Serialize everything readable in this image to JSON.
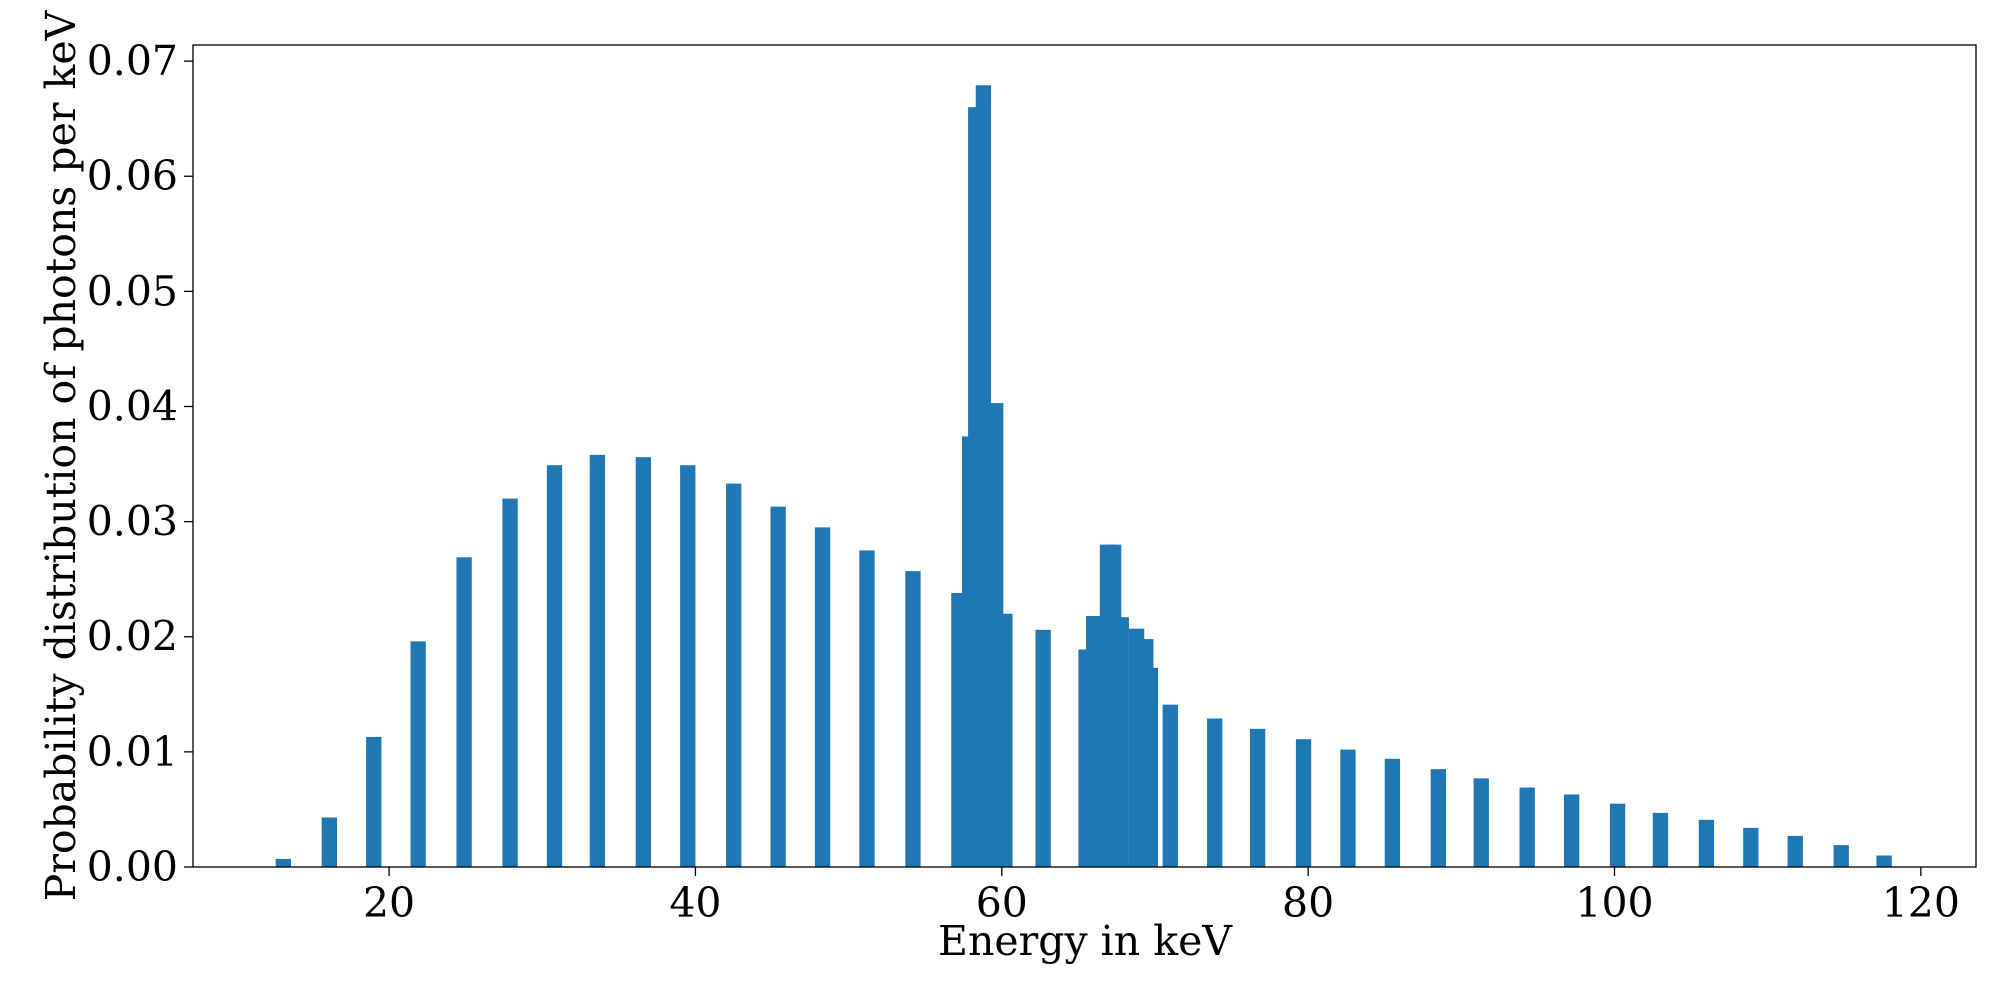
{
  "chart_data": {
    "type": "bar",
    "color": "#1f77b4",
    "bar_width": 1,
    "xlabel": "Energy in keV",
    "ylabel": "Probability distribution of photons per keV",
    "x": [
      13.1,
      16.1,
      19.0,
      21.9,
      24.9,
      27.9,
      30.8,
      33.6,
      36.6,
      39.5,
      42.5,
      45.4,
      48.3,
      51.2,
      54.2,
      57.2,
      57.9,
      58.3,
      58.8,
      59.6,
      60.2,
      62.7,
      65.5,
      66.0,
      66.9,
      67.3,
      67.8,
      68.8,
      69.4,
      69.7,
      71.0,
      73.9,
      76.7,
      79.7,
      82.6,
      85.5,
      88.5,
      91.3,
      94.3,
      97.2,
      100.2,
      103.0,
      106.0,
      108.9,
      111.8,
      114.8,
      117.6
    ],
    "values": [
      0.0007,
      0.0043,
      0.0113,
      0.0196,
      0.0269,
      0.032,
      0.0349,
      0.0358,
      0.0356,
      0.0349,
      0.0333,
      0.0313,
      0.0295,
      0.0275,
      0.0257,
      0.0238,
      0.0374,
      0.066,
      0.0679,
      0.0403,
      0.022,
      0.0206,
      0.0189,
      0.0218,
      0.028,
      0.028,
      0.0217,
      0.0207,
      0.0198,
      0.0173,
      0.0141,
      0.0129,
      0.012,
      0.0111,
      0.0102,
      0.0094,
      0.0085,
      0.0077,
      0.0069,
      0.0063,
      0.0055,
      0.0047,
      0.0041,
      0.0034,
      0.0027,
      0.0019,
      0.001
    ],
    "xlim": [
      7.2,
      123.6
    ],
    "xticks": [
      20,
      40,
      60,
      80,
      100,
      120
    ],
    "ylim": [
      0,
      0.0714
    ],
    "yticks": [
      {
        "value": 0,
        "label": "0.00"
      },
      {
        "value": 0.01,
        "label": "0.01"
      },
      {
        "value": 0.02,
        "label": "0.02"
      },
      {
        "value": 0.03,
        "label": "0.03"
      },
      {
        "value": 0.04,
        "label": "0.04"
      },
      {
        "value": 0.05,
        "label": "0.05"
      },
      {
        "value": 0.06,
        "label": "0.06"
      },
      {
        "value": 0.07,
        "label": "0.07"
      }
    ]
  }
}
